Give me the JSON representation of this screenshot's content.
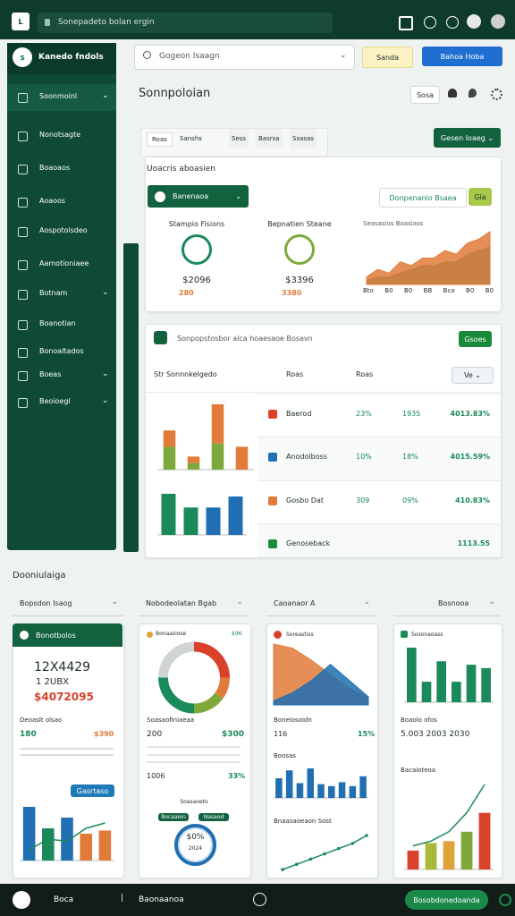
{
  "topbar": {
    "address": "Sonepadeto bolan ergin"
  },
  "sidebar": {
    "brand": "Kanedo fndols",
    "items": [
      "Soonmoinl",
      "Nonotsagte",
      "Boaoaos",
      "Aoaoos",
      "Aospotolsdeo",
      "Aamotioniaee",
      "Botnam",
      "Boanotian",
      "Bonoaltados",
      "Boeas",
      "Beoioegl"
    ]
  },
  "toolbar": {
    "search": "Gogeon Isaagn",
    "button1": "Sanda",
    "button2": "Bahoa Hoba"
  },
  "header": {
    "title": "Sonnpoloian",
    "filter": "Sosa"
  },
  "tabs": [
    "Roas",
    "Sanshs",
    "Sess",
    "Basrsa",
    "Ssasas"
  ],
  "action": "Gesen Ioaeg",
  "summary": {
    "title": "Uoacris aboasien",
    "dropdown": "Banenaoa",
    "filter": "Donpenanio Bsaea",
    "filter_button": "Gia",
    "stats": [
      {
        "label": "Stampio Fisions",
        "value": "$2096",
        "sub": "280"
      },
      {
        "label": "Bepnatien Steane",
        "value": "$3396",
        "sub": "3380"
      }
    ],
    "chart": {
      "type": "area",
      "title": "Seasasios Boasiass",
      "x_labels": [
        "Bto",
        "B0",
        "B0",
        "BB",
        "Bco",
        "B0",
        "B0"
      ],
      "series": [
        {
          "color": "#2e8b57",
          "values": [
            1,
            2,
            2,
            3,
            4,
            5,
            5,
            6,
            6,
            8,
            9,
            10
          ]
        },
        {
          "color": "#e07b39",
          "values": [
            2,
            4,
            3,
            6,
            5,
            7,
            7,
            9,
            8,
            11,
            12,
            14
          ]
        }
      ]
    }
  },
  "table_card": {
    "title": "Sonpopstosbor alca hoaesaoe Bosavn",
    "button": "Gsoes",
    "subtitle": "Str Sonnnkelgedo",
    "col1": "Roas",
    "col2": "Roas",
    "filter": "Ve",
    "chart_top": {
      "type": "stack",
      "series": [
        {
          "color": "#7fa83a",
          "values": [
            35,
            10,
            40,
            0
          ]
        },
        {
          "color": "#e07b39",
          "values": [
            25,
            10,
            60,
            35
          ]
        }
      ]
    },
    "chart_bottom": {
      "type": "bar",
      "colors": [
        "#1a8a5a",
        "#1a8a5a",
        "#1f6fb2",
        "#1f6fb2"
      ],
      "values": [
        45,
        30,
        30,
        42
      ]
    },
    "rows": [
      {
        "name": "Baerod",
        "a": "23%",
        "b": "1935",
        "c": "4013.83%"
      },
      {
        "name": "Anodolboss",
        "a": "10%",
        "b": "18%",
        "c": "4015.59%"
      },
      {
        "name": "Gosbo Dat",
        "a": "309",
        "b": "09%",
        "c": "410.83%"
      },
      {
        "name": "Genoseback",
        "c": "1113.55"
      }
    ]
  },
  "section": {
    "title": "Dooniulaiga",
    "dropdowns": [
      "Bopsdon Isaog",
      "Nobodeolatan Bgab",
      "Caoanaor A",
      "Bosnooa"
    ]
  },
  "cards": [
    {
      "title": "Bonotbolos",
      "big": "12X4429",
      "line2": "1 2UBX",
      "money": "$4072095",
      "label": "Deoaslt olsao",
      "left": "180",
      "right": "$390",
      "button": "Gasrtaso",
      "chart": {
        "type": "bar",
        "colors": [
          "#1f6fb2",
          "#1a8a5a",
          "#1f6fb2",
          "#e07b39",
          "#e07b39"
        ],
        "values": [
          50,
          30,
          40,
          25,
          28
        ],
        "line": {
          "color": "#1a8a5a",
          "values": [
            10,
            20,
            18,
            30,
            35
          ]
        }
      }
    },
    {
      "title": "Bonaasiose",
      "badge": "$96",
      "chart": {
        "type": "donut",
        "colors": [
          "#d9412b",
          "#e07b39",
          "#7fa83a",
          "#1a8a5a",
          "#d0d4d2"
        ],
        "values": [
          25,
          10,
          15,
          25,
          25
        ]
      },
      "label": "Soasaofiniaeaa",
      "left": "200",
      "right": "$300",
      "left2": "1006",
      "right2": "33%",
      "sub": "Soasaoeto",
      "tab1": "Bocaaion",
      "tab2": "Nasaod",
      "gauge": "$0%",
      "gauge_sub": "2024"
    },
    {
      "title": "Soreastiss",
      "chart": {
        "type": "area",
        "series": [
          {
            "color": "#e07b39",
            "values": [
              30,
              28,
              22,
              15,
              8,
              4
            ]
          },
          {
            "color": "#1f6fb2",
            "values": [
              2,
              6,
              12,
              20,
              12,
              4
            ]
          }
        ]
      },
      "label": "Bonelosoidn",
      "left": "116",
      "right": "15%",
      "sub": "Boosas",
      "bars": {
        "type": "bar",
        "color": "#1f6fb2",
        "values": [
          20,
          28,
          15,
          30,
          14,
          12,
          16,
          12,
          22
        ]
      },
      "sub2": "Bnaasaoeaon Sost",
      "line": {
        "type": "line",
        "color": "#1a8a5a",
        "values": [
          2,
          4,
          6,
          8,
          10,
          12,
          15
        ]
      }
    },
    {
      "title": "Sosonaoass",
      "chart": {
        "type": "bar",
        "color": "#1a8a5a",
        "values": [
          80,
          30,
          60,
          30,
          55,
          50
        ]
      },
      "label": "Boaolo ofos",
      "value": "5.003 2003 2030",
      "sub": "Bacaioteoa",
      "combo": {
        "type": "bar",
        "colors": [
          "#d9412b",
          "#a8b83a",
          "#e0a23a",
          "#7fa83a",
          "#d9412b"
        ],
        "values": [
          20,
          28,
          30,
          40,
          60
        ],
        "line": {
          "color": "#1a8a5a",
          "values": [
            25,
            30,
            40,
            60,
            90
          ]
        }
      }
    }
  ],
  "bottombar": {
    "left": "Boca",
    "mid": "Baonaanoa",
    "button": "Bosobdonedoanda"
  }
}
